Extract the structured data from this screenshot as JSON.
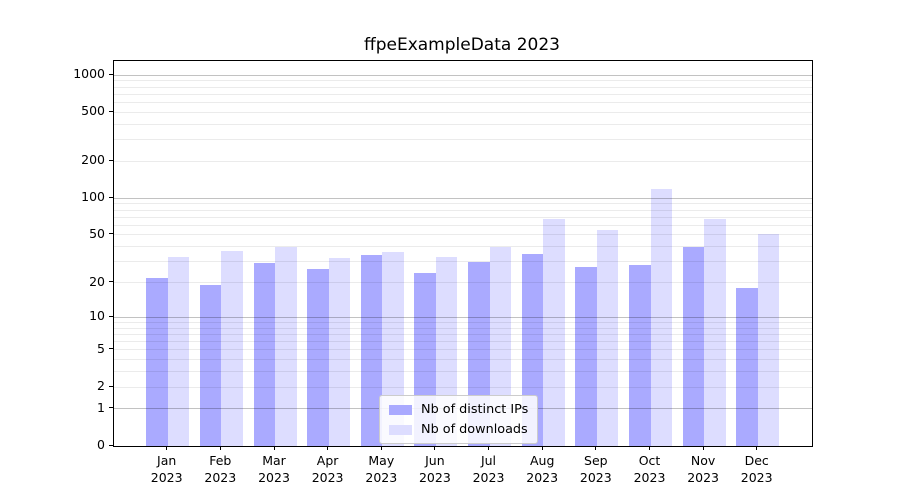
{
  "title": "ffpeExampleData 2023",
  "chart_data": {
    "type": "bar",
    "title": "ffpeExampleData 2023",
    "y_scale": "log1p",
    "ylim": [
      0,
      1302
    ],
    "y_ticks": [
      0,
      1,
      2,
      5,
      10,
      20,
      50,
      100,
      200,
      500,
      1000
    ],
    "grid": "horizontal major at powers of 10, minor at 2-9 per decade, drawn over bars",
    "categories": [
      "Jan",
      "Feb",
      "Mar",
      "Apr",
      "May",
      "Jun",
      "Jul",
      "Aug",
      "Sep",
      "Oct",
      "Nov",
      "Dec"
    ],
    "year": "2023",
    "series": [
      {
        "name": "Nb of distinct IPs",
        "color": "#aaaaff",
        "values": [
          22,
          19,
          29,
          26,
          34,
          24,
          30,
          35,
          27,
          28,
          40,
          18
        ]
      },
      {
        "name": "Nb of downloads",
        "color": "#ddddff",
        "values": [
          33,
          37,
          40,
          32,
          36,
          33,
          40,
          68,
          55,
          120,
          68,
          51
        ]
      }
    ],
    "legend_position": "lower center, inside plot"
  },
  "colors": {
    "distinct_ips_bar": "#aaaaff",
    "downloads_bar": "#ddddff",
    "major_grid": "#c2c2c2",
    "minor_grid": "#ebebeb",
    "axis": "#000000",
    "background": "#ffffff"
  }
}
